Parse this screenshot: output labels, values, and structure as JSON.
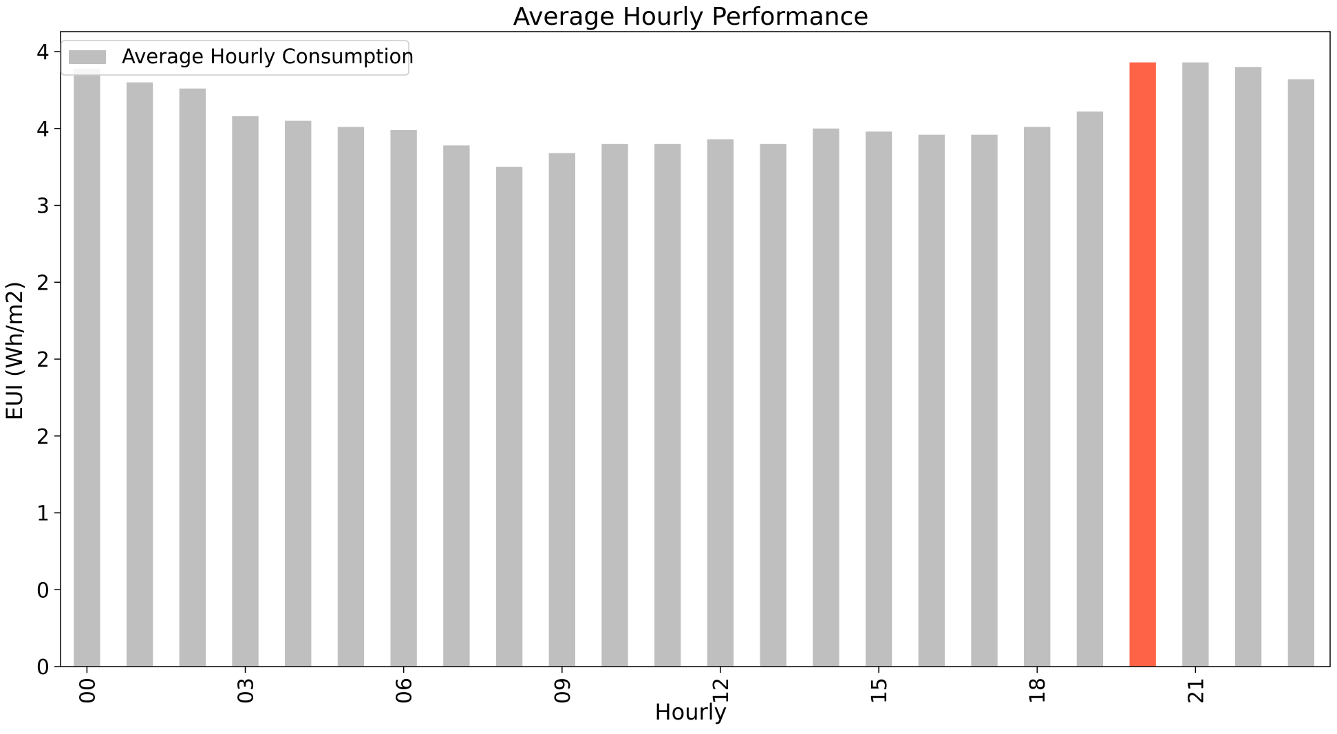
{
  "chart_data": {
    "type": "bar",
    "title": "Average Hourly Performance",
    "xlabel": "Hourly",
    "ylabel": "EUI (Wh/m2)",
    "categories": [
      "00",
      "01",
      "02",
      "03",
      "04",
      "05",
      "06",
      "07",
      "08",
      "09",
      "10",
      "11",
      "12",
      "13",
      "14",
      "15",
      "16",
      "17",
      "18",
      "19",
      "20",
      "21",
      "22",
      "23"
    ],
    "x_tick_labels_shown": [
      "00",
      "03",
      "06",
      "09",
      "12",
      "15",
      "18",
      "21"
    ],
    "y_tick_labels": [
      "0",
      "0",
      "1",
      "2",
      "2",
      "2",
      "3",
      "4",
      "4"
    ],
    "ylim": [
      0,
      4.13
    ],
    "y_tick_step": 0.5,
    "grid": false,
    "legend": {
      "position": "top-left",
      "entries": [
        "Average Hourly Consumption"
      ]
    },
    "series": [
      {
        "name": "Average Hourly Consumption",
        "color": "#bfbfbf",
        "values": [
          3.89,
          3.8,
          3.76,
          3.58,
          3.55,
          3.51,
          3.49,
          3.39,
          3.25,
          3.34,
          3.4,
          3.4,
          3.43,
          3.4,
          3.5,
          3.48,
          3.46,
          3.46,
          3.51,
          3.61,
          3.93,
          3.93,
          3.9,
          3.82
        ]
      }
    ],
    "highlight": {
      "category": "20",
      "color": "#ff6347"
    }
  }
}
